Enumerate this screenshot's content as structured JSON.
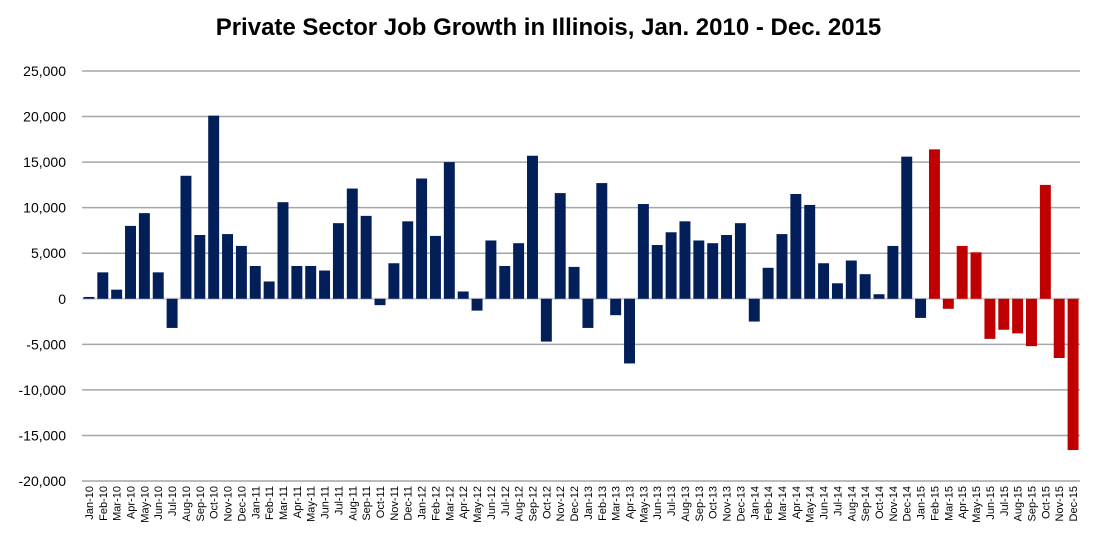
{
  "chart_data": {
    "type": "bar",
    "title": "Private Sector Job Growth in Illinois, Jan. 2010 - Dec. 2015",
    "xlabel": "",
    "ylabel": "",
    "ylim": [
      -20000,
      25000
    ],
    "yticks": [
      25000,
      20000,
      15000,
      10000,
      5000,
      0,
      -5000,
      -10000,
      -15000,
      -20000
    ],
    "ytick_labels": [
      "25,000",
      "20,000",
      "15,000",
      "10,000",
      "5,000",
      "0",
      "-5,000",
      "-10,000",
      "-15,000",
      "-20,000"
    ],
    "grid": true,
    "colors": {
      "default": "#031f5a",
      "highlight": "#c00000",
      "grid": "#a6a6a6"
    },
    "highlight_from": "Feb-15",
    "categories": [
      "Jan-10",
      "Feb-10",
      "Mar-10",
      "Apr-10",
      "May-10",
      "Jun-10",
      "Jul-10",
      "Aug-10",
      "Sep-10",
      "Oct-10",
      "Nov-10",
      "Dec-10",
      "Jan-11",
      "Feb-11",
      "Mar-11",
      "Apr-11",
      "May-11",
      "Jun-11",
      "Jul-11",
      "Aug-11",
      "Sep-11",
      "Oct-11",
      "Nov-11",
      "Dec-11",
      "Jan-12",
      "Feb-12",
      "Mar-12",
      "Apr-12",
      "May-12",
      "Jun-12",
      "Jul-12",
      "Aug-12",
      "Sep-12",
      "Oct-12",
      "Nov-12",
      "Dec-12",
      "Jan-13",
      "Feb-13",
      "Mar-13",
      "Apr-13",
      "May-13",
      "Jun-13",
      "Jul-13",
      "Aug-13",
      "Sep-13",
      "Oct-13",
      "Nov-13",
      "Dec-13",
      "Jan-14",
      "Feb-14",
      "Mar-14",
      "Apr-14",
      "May-14",
      "Jun-14",
      "Jul-14",
      "Aug-14",
      "Sep-14",
      "Oct-14",
      "Nov-14",
      "Dec-14",
      "Jan-15",
      "Feb-15",
      "Mar-15",
      "Apr-15",
      "May-15",
      "Jun-15",
      "Jul-15",
      "Aug-15",
      "Sep-15",
      "Oct-15",
      "Nov-15",
      "Dec-15"
    ],
    "values": [
      200,
      2900,
      1000,
      8000,
      9400,
      2900,
      -3200,
      13500,
      7000,
      20100,
      7100,
      5800,
      3600,
      1900,
      10600,
      3600,
      3600,
      3100,
      8300,
      12100,
      9100,
      -700,
      3900,
      8500,
      13200,
      6900,
      15000,
      800,
      -1300,
      6400,
      3600,
      6100,
      15700,
      -4700,
      11600,
      3500,
      -3200,
      12700,
      -1800,
      -7100,
      10400,
      5900,
      7300,
      8500,
      6400,
      6100,
      7000,
      8300,
      -2500,
      3400,
      7100,
      11500,
      10300,
      3900,
      1700,
      4200,
      2700,
      500,
      5800,
      15600,
      -2100,
      16400,
      -1100,
      5800,
      5100,
      -4400,
      -3400,
      -3800,
      -5200,
      12500,
      -6500,
      -16600
    ]
  }
}
